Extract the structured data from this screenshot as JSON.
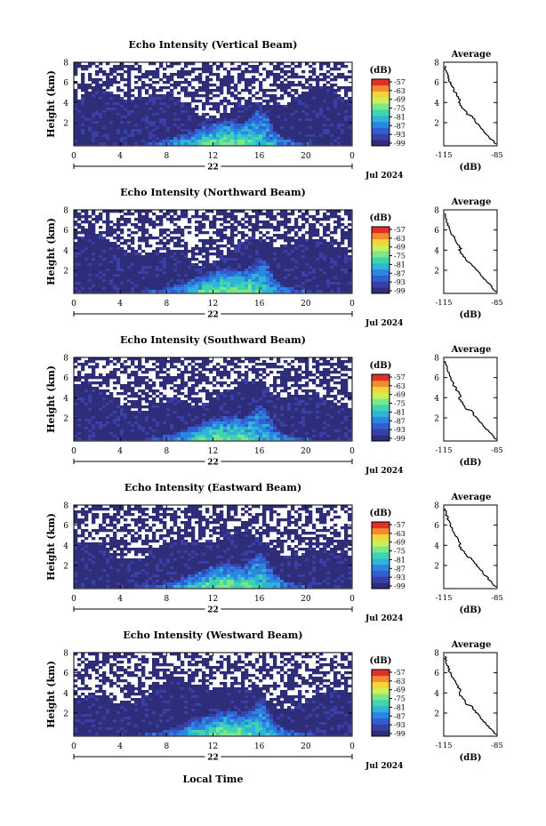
{
  "figure": {
    "shared_xlabel": "Local Time",
    "date_label": "Jul 2024",
    "day_label": "22",
    "height_ylabel": "Height (km)",
    "colorbar_unit": "(dB)",
    "avg_title": "Average",
    "avg_xlabel": "(dB)"
  },
  "colors": {
    "colormap": [
      "#2e2d7a",
      "#3a3fa6",
      "#2f5fd0",
      "#2b86e0",
      "#2fb3d9",
      "#3fd4b0",
      "#7ee68a",
      "#c9ef5a",
      "#f5d43a",
      "#f58a2e",
      "#e0302a"
    ],
    "background_echo": "#3b3d84"
  },
  "chart_data": [
    {
      "type": "heatmap",
      "title": "Echo Intensity (Vertical Beam)",
      "ylabel": "Height (km)",
      "xlabel": "Local Time",
      "x_ticks": [
        "0",
        "4",
        "8",
        "12",
        "16",
        "20",
        "0"
      ],
      "y_ticks": [
        "2",
        "4",
        "6",
        "8"
      ],
      "colorbar_label": "(dB)",
      "colorbar_ticks": [
        "-57",
        "-63",
        "-69",
        "-75",
        "-81",
        "-87",
        "-93",
        "-99"
      ],
      "profile": {
        "title": "Average",
        "xlabel": "(dB)",
        "x_ticks": [
          "-115",
          "-85"
        ],
        "y_ticks": [
          "2",
          "4",
          "6",
          "8"
        ]
      }
    },
    {
      "type": "heatmap",
      "title": "Echo Intensity (Northward Beam)",
      "ylabel": "Height (km)",
      "xlabel": "Local Time",
      "x_ticks": [
        "0",
        "4",
        "8",
        "12",
        "16",
        "20",
        "0"
      ],
      "y_ticks": [
        "2",
        "4",
        "6",
        "8"
      ],
      "colorbar_label": "(dB)",
      "colorbar_ticks": [
        "-57",
        "-63",
        "-69",
        "-75",
        "-81",
        "-87",
        "-93",
        "-99"
      ],
      "profile": {
        "title": "Average",
        "xlabel": "(dB)",
        "x_ticks": [
          "-115",
          "-85"
        ],
        "y_ticks": [
          "2",
          "4",
          "6",
          "8"
        ]
      }
    },
    {
      "type": "heatmap",
      "title": "Echo Intensity (Southward Beam)",
      "ylabel": "Height (km)",
      "xlabel": "Local Time",
      "x_ticks": [
        "0",
        "4",
        "8",
        "12",
        "16",
        "20",
        "0"
      ],
      "y_ticks": [
        "2",
        "4",
        "6",
        "8"
      ],
      "colorbar_label": "(dB)",
      "colorbar_ticks": [
        "-57",
        "-63",
        "-69",
        "-75",
        "-81",
        "-87",
        "-93",
        "-99"
      ],
      "profile": {
        "title": "Average",
        "xlabel": "(dB)",
        "x_ticks": [
          "-115",
          "-85"
        ],
        "y_ticks": [
          "2",
          "4",
          "6",
          "8"
        ]
      }
    },
    {
      "type": "heatmap",
      "title": "Echo Intensity (Eastward Beam)",
      "ylabel": "Height (km)",
      "xlabel": "Local Time",
      "x_ticks": [
        "0",
        "4",
        "8",
        "12",
        "16",
        "20",
        "0"
      ],
      "y_ticks": [
        "2",
        "4",
        "6",
        "8"
      ],
      "colorbar_label": "(dB)",
      "colorbar_ticks": [
        "-57",
        "-63",
        "-69",
        "-75",
        "-81",
        "-87",
        "-93",
        "-99"
      ],
      "profile": {
        "title": "Average",
        "xlabel": "(dB)",
        "x_ticks": [
          "-115",
          "-85"
        ],
        "y_ticks": [
          "2",
          "4",
          "6",
          "8"
        ]
      }
    },
    {
      "type": "heatmap",
      "title": "Echo Intensity (Westward Beam)",
      "ylabel": "Height (km)",
      "xlabel": "Local Time",
      "x_ticks": [
        "0",
        "4",
        "8",
        "12",
        "16",
        "20",
        "0"
      ],
      "y_ticks": [
        "2",
        "4",
        "6",
        "8"
      ],
      "colorbar_label": "(dB)",
      "colorbar_ticks": [
        "-57",
        "-63",
        "-69",
        "-75",
        "-81",
        "-87",
        "-93",
        "-99"
      ],
      "profile": {
        "title": "Average",
        "xlabel": "(dB)",
        "x_ticks": [
          "-115",
          "-85"
        ],
        "y_ticks": [
          "2",
          "4",
          "6",
          "8"
        ]
      }
    }
  ]
}
